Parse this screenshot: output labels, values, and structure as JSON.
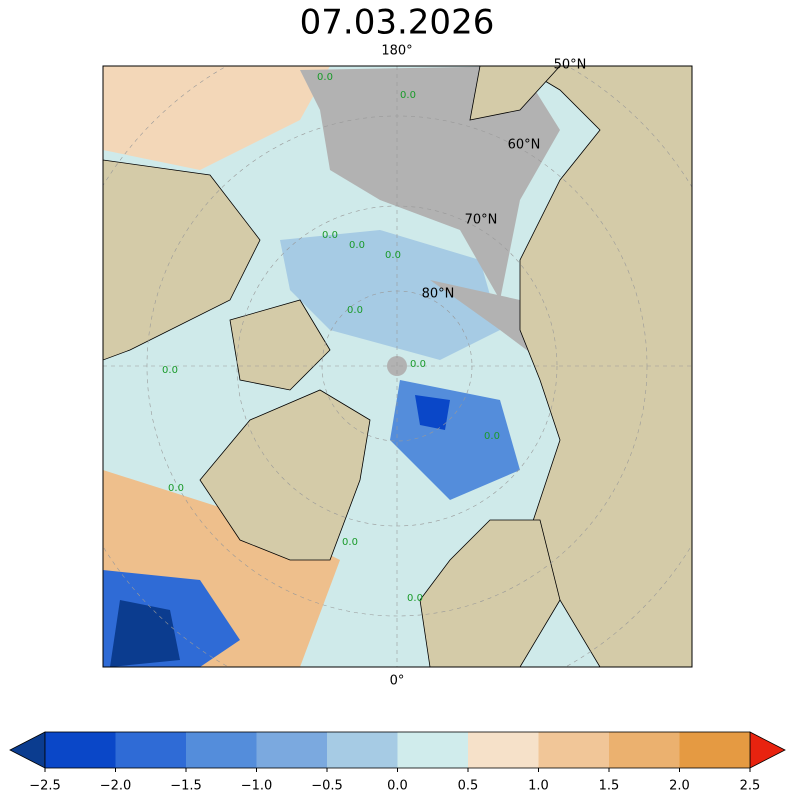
{
  "title": "07.03.2026",
  "meridian_labels": [
    "180°",
    "0°"
  ],
  "latitude_labels": [
    "50°N",
    "60°N",
    "70°N",
    "80°N"
  ],
  "contour_labels": [
    "0.0",
    "0.0",
    "0.0",
    "0.0",
    "0.0",
    "0.0",
    "0.0",
    "0.0",
    "0.0",
    "0.0",
    "0.0",
    "0.0"
  ],
  "colorbar": {
    "colors": [
      "#0a47c8",
      "#2f6bd6",
      "#548ddb",
      "#7ba9df",
      "#a6cbe4",
      "#d0ecec",
      "#f6e1c9",
      "#f1c698",
      "#ebb16f",
      "#e59a42"
    ],
    "under_color": "#0b3c8f",
    "over_color": "#e8230f",
    "ticks": [
      {
        "value": -2.5,
        "label": "−2.5"
      },
      {
        "value": -2.0,
        "label": "−2.0"
      },
      {
        "value": -1.5,
        "label": "−1.5"
      },
      {
        "value": -1.0,
        "label": "−1.0"
      },
      {
        "value": -0.5,
        "label": "−0.5"
      },
      {
        "value": 0.0,
        "label": "0.0"
      },
      {
        "value": 0.5,
        "label": "0.5"
      },
      {
        "value": 1.0,
        "label": "1.0"
      },
      {
        "value": 1.5,
        "label": "1.5"
      },
      {
        "value": 2.0,
        "label": "2.0"
      },
      {
        "value": 2.5,
        "label": "2.5"
      }
    ]
  }
}
